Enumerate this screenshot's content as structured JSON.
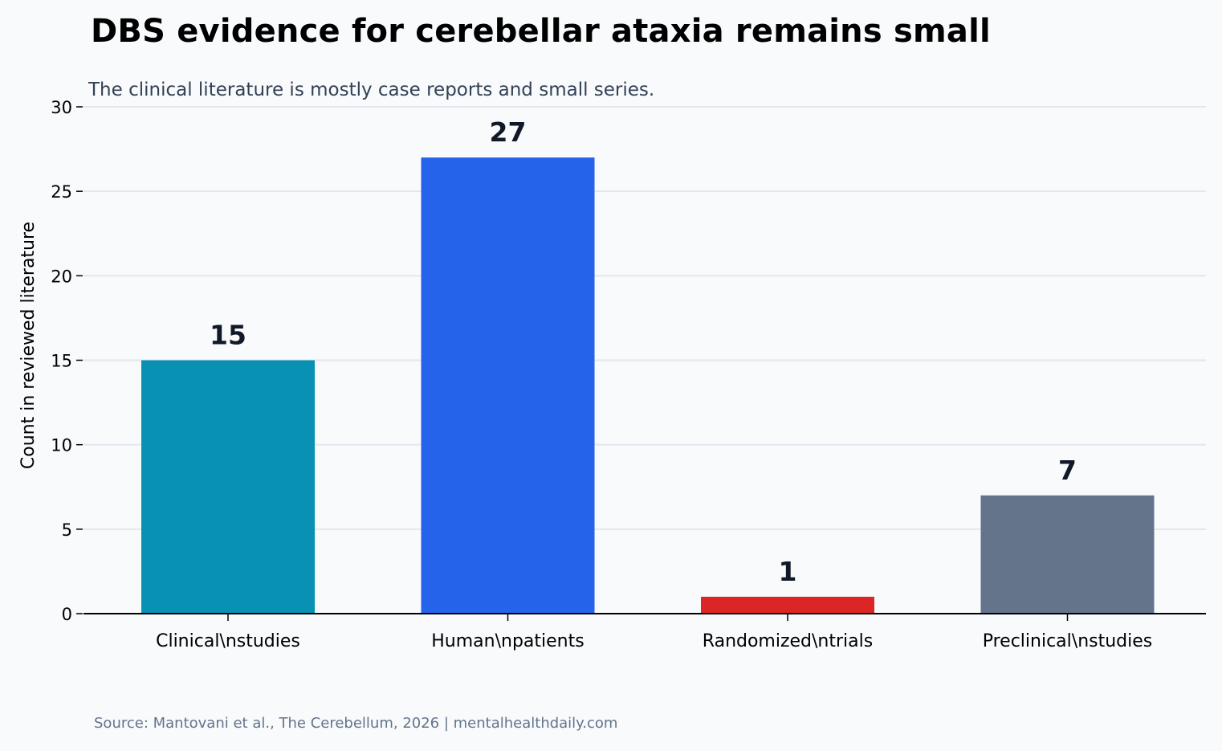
{
  "title": "DBS evidence for cerebellar ataxia remains small",
  "subtitle": "The clinical literature is mostly case reports and small series.",
  "source": "Source: Mantovani et al., The Cerebellum, 2026 | mentalhealthdaily.com",
  "chart_data": {
    "type": "bar",
    "title": "DBS evidence for cerebellar ataxia remains small",
    "subtitle": "The clinical literature is mostly case reports and small series.",
    "categories": [
      "Clinical\\nstudies",
      "Human\\npatients",
      "Randomized\\ntrials",
      "Preclinical\\nstudies"
    ],
    "values": [
      15,
      27,
      1,
      7
    ],
    "colors": [
      "#0891b2",
      "#2563eb",
      "#dc2626",
      "#64748b"
    ],
    "data_labels": [
      "15",
      "27",
      "1",
      "7"
    ],
    "xlabel": "",
    "ylabel": "Count in reviewed literature",
    "ylim": [
      0,
      30
    ],
    "yticks": [
      0,
      5,
      10,
      15,
      20,
      25,
      30
    ],
    "grid": "horizontal",
    "legend": "none"
  }
}
